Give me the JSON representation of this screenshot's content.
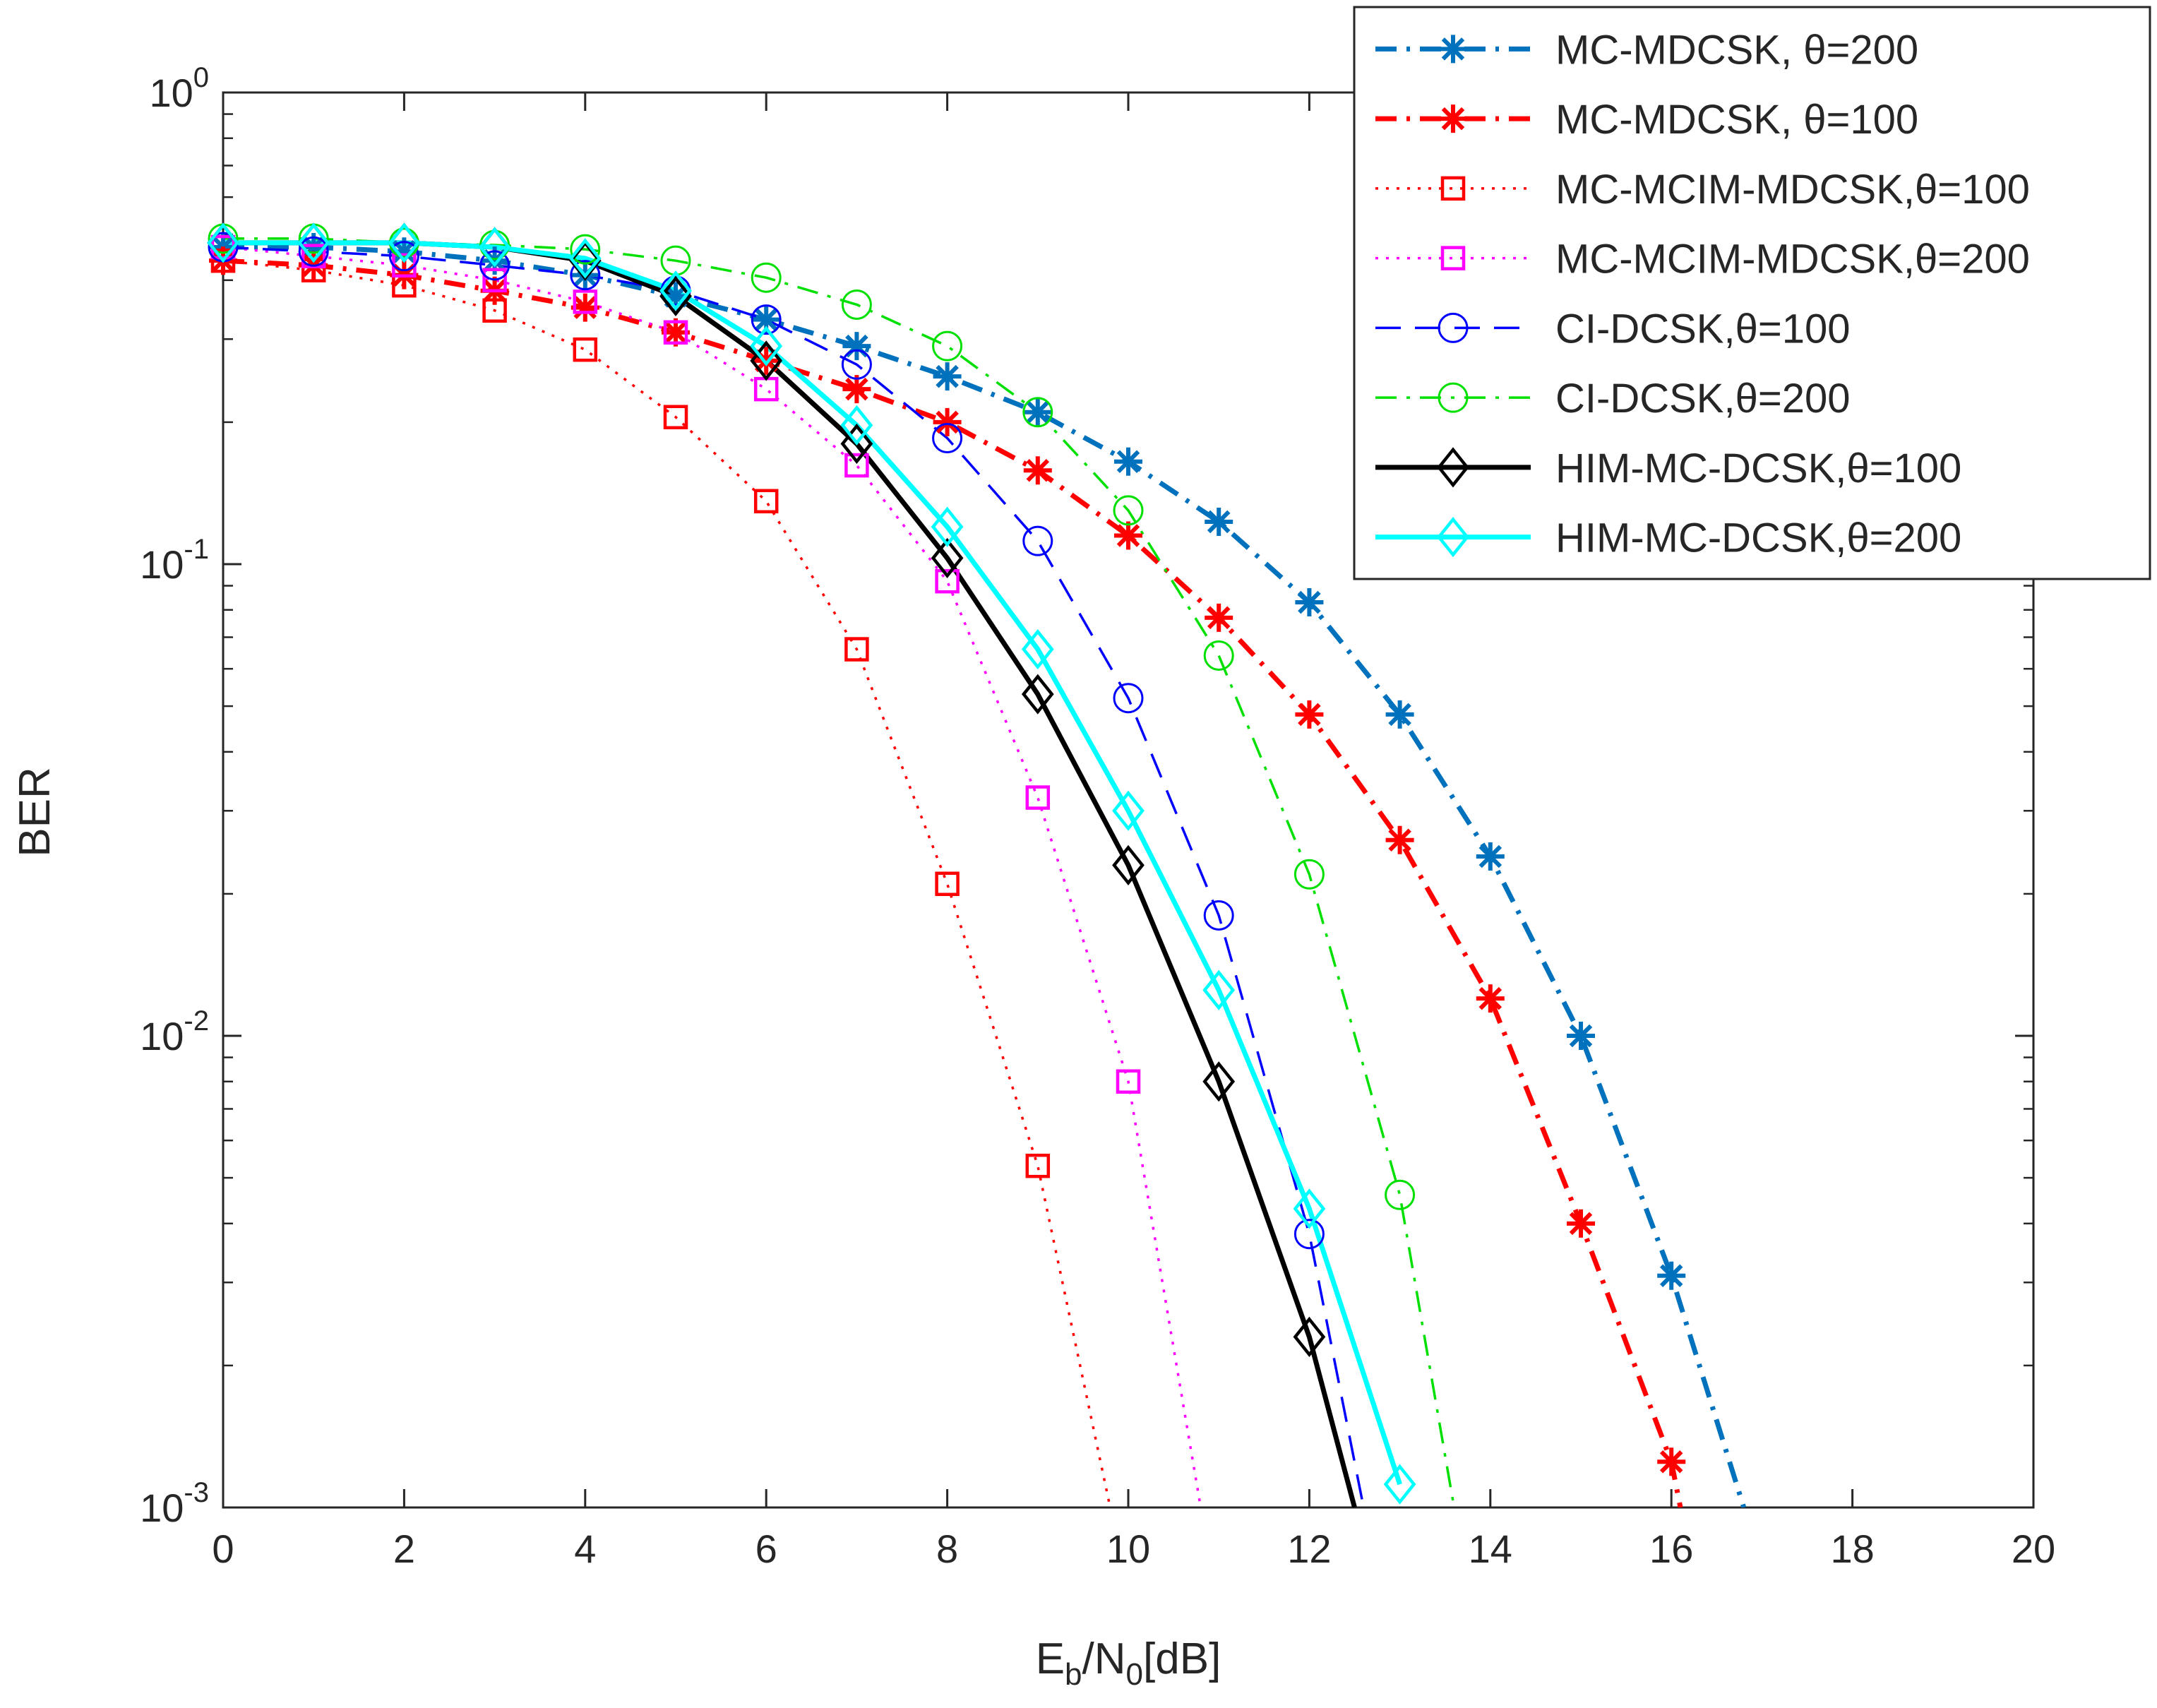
{
  "chart_data": {
    "type": "line",
    "title": "",
    "xlabel": {
      "base": "E",
      "sub1": "b",
      "mid": "/N",
      "sub2": "0",
      "tail": "[dB]"
    },
    "ylabel": "BER",
    "yscale": "log",
    "xlim": [
      0,
      20
    ],
    "ylim": [
      0.001,
      1
    ],
    "x_ticks": [
      "0",
      "2",
      "4",
      "6",
      "8",
      "10",
      "12",
      "14",
      "16",
      "18",
      "20"
    ],
    "y_ticks": [
      {
        "base": "10",
        "exp": "0"
      },
      {
        "base": "10",
        "exp": "-1"
      },
      {
        "base": "10",
        "exp": "-2"
      },
      {
        "base": "10",
        "exp": "-3"
      }
    ],
    "grid": false,
    "legend_position": "top-right",
    "series": [
      {
        "name": "MC-MDCSK, θ=200",
        "color": "#0072BD",
        "dash": "dashdot",
        "width": "thick",
        "marker": "star",
        "x": [
          0,
          1,
          2,
          3,
          4,
          5,
          6,
          7,
          8,
          9,
          10,
          11,
          12,
          13,
          14,
          15,
          16,
          16.8
        ],
        "y": [
          0.47,
          0.47,
          0.46,
          0.44,
          0.41,
          0.37,
          0.33,
          0.29,
          0.25,
          0.21,
          0.165,
          0.123,
          0.083,
          0.048,
          0.024,
          0.01,
          0.0031,
          0.001
        ]
      },
      {
        "name": "MC-MDCSK,  θ=100",
        "color": "#FF0000",
        "dash": "dashdot",
        "width": "thick",
        "marker": "star",
        "x": [
          0,
          1,
          2,
          3,
          4,
          5,
          6,
          7,
          8,
          9,
          10,
          11,
          12,
          13,
          14,
          15,
          16,
          16.1
        ],
        "y": [
          0.44,
          0.43,
          0.41,
          0.38,
          0.35,
          0.31,
          0.27,
          0.235,
          0.2,
          0.158,
          0.115,
          0.077,
          0.048,
          0.026,
          0.012,
          0.004,
          0.00125,
          0.001
        ]
      },
      {
        "name": "MC-MCIM-MDCSK,θ=100",
        "color": "#FF0000",
        "dash": "dotted",
        "width": "thin",
        "marker": "square",
        "x": [
          0,
          1,
          2,
          3,
          4,
          5,
          6,
          7,
          8,
          9,
          9.8
        ],
        "y": [
          0.44,
          0.42,
          0.39,
          0.345,
          0.285,
          0.205,
          0.136,
          0.066,
          0.021,
          0.0053,
          0.001
        ]
      },
      {
        "name": "MC-MCIM-MDCSK,θ=200",
        "color": "#FF00FF",
        "dash": "dotted",
        "width": "thin",
        "marker": "square",
        "x": [
          0,
          1,
          2,
          3,
          4,
          5,
          6,
          7,
          8,
          9,
          10,
          10.8
        ],
        "y": [
          0.47,
          0.45,
          0.43,
          0.4,
          0.36,
          0.31,
          0.235,
          0.162,
          0.092,
          0.032,
          0.008,
          0.001
        ]
      },
      {
        "name": "CI-DCSK,θ=100",
        "color": "#0000FF",
        "dash": "dashed",
        "width": "thin",
        "marker": "circle",
        "x": [
          0,
          1,
          2,
          3,
          4,
          5,
          6,
          7,
          8,
          9,
          10,
          11,
          12,
          12.6
        ],
        "y": [
          0.47,
          0.46,
          0.45,
          0.43,
          0.41,
          0.38,
          0.33,
          0.265,
          0.185,
          0.112,
          0.052,
          0.018,
          0.0038,
          0.001
        ]
      },
      {
        "name": "CI-DCSK,θ=200",
        "color": "#00E000",
        "dash": "dashdot",
        "width": "thin",
        "marker": "circle",
        "x": [
          0,
          1,
          2,
          3,
          4,
          5,
          6,
          7,
          8,
          9,
          10,
          11,
          12,
          13,
          13.6
        ],
        "y": [
          0.49,
          0.49,
          0.48,
          0.475,
          0.465,
          0.44,
          0.405,
          0.355,
          0.29,
          0.21,
          0.13,
          0.064,
          0.022,
          0.0046,
          0.001
        ]
      },
      {
        "name": "HIM-MC-DCSK,θ=100",
        "color": "#000000",
        "dash": "solid",
        "width": "thick",
        "marker": "diamond",
        "x": [
          0,
          1,
          2,
          3,
          4,
          5,
          6,
          7,
          8,
          9,
          10,
          11,
          12,
          12.5
        ],
        "y": [
          0.48,
          0.48,
          0.48,
          0.47,
          0.44,
          0.37,
          0.27,
          0.18,
          0.103,
          0.053,
          0.023,
          0.008,
          0.0023,
          0.001
        ]
      },
      {
        "name": "HIM-MC-DCSK,θ=200",
        "color": "#00FFFF",
        "dash": "solid",
        "width": "thick",
        "marker": "diamond",
        "x": [
          0,
          1,
          2,
          3,
          4,
          5,
          6,
          7,
          8,
          9,
          10,
          11,
          12,
          13
        ],
        "y": [
          0.48,
          0.48,
          0.48,
          0.47,
          0.445,
          0.38,
          0.29,
          0.197,
          0.12,
          0.066,
          0.03,
          0.0125,
          0.0043,
          0.00112
        ]
      }
    ]
  }
}
